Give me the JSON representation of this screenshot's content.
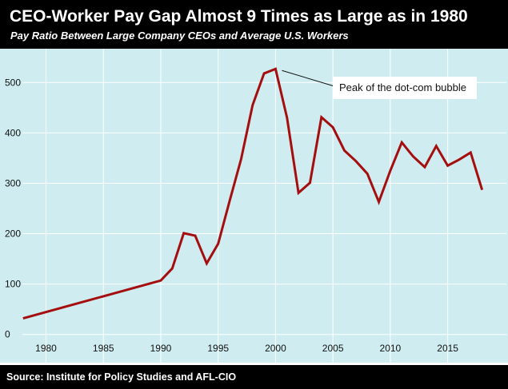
{
  "header": {
    "title": "CEO-Worker Pay Gap Almost 9 Times as Large as in 1980",
    "subtitle": "Pay Ratio Between Large Company CEOs and Average U.S. Workers"
  },
  "footer": {
    "source": "Source: Institute for Policy Studies and AFL-CIO"
  },
  "colors": {
    "header_bg": "#000000",
    "plot_bg": "#cfedf0",
    "line": "#a50e0e",
    "grid": "#ffffff"
  },
  "chart_data": {
    "type": "line",
    "title": "CEO-Worker Pay Gap Almost 9 Times as Large as in 1980",
    "subtitle": "Pay Ratio Between Large Company CEOs and Average U.S. Workers",
    "xlabel": "",
    "ylabel": "",
    "xlim": [
      1978.5,
      2019
    ],
    "ylim": [
      -10,
      548
    ],
    "grid": true,
    "x_ticks": [
      1980,
      1985,
      1990,
      1995,
      2000,
      2005,
      2010,
      2015
    ],
    "y_ticks": [
      0,
      100,
      200,
      300,
      400,
      500
    ],
    "series": [
      {
        "x": [
          1978,
          1990,
          1991,
          1992,
          1993,
          1994,
          1995,
          1996,
          1997,
          1998,
          1999,
          2000,
          2001,
          2002,
          2003,
          2004,
          2005,
          2006,
          2007,
          2008,
          2009,
          2010,
          2011,
          2012,
          2013,
          2014,
          2015,
          2016,
          2017,
          2018
        ],
        "y": [
          32,
          107,
          131,
          201,
          196,
          141,
          180,
          265,
          348,
          455,
          518,
          527,
          430,
          281,
          301,
          431,
          411,
          365,
          344,
          319,
          263,
          325,
          381,
          353,
          332,
          374,
          335,
          347,
          361,
          287
        ]
      }
    ],
    "annotations": [
      {
        "text": "Peak of the dot-com bubble",
        "x": 2000,
        "y": 527
      }
    ]
  }
}
